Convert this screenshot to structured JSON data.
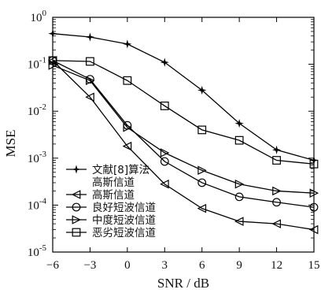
{
  "chart_data": {
    "type": "line",
    "xlabel": "SNR / dB",
    "ylabel": "MSE",
    "x": [
      -6,
      -3,
      0,
      3,
      6,
      9,
      12,
      15
    ],
    "x_ticks": [
      "−6",
      "−3",
      "0",
      "3",
      "6",
      "9",
      "12",
      "15"
    ],
    "xlim": [
      -6,
      15
    ],
    "y_scale": "log",
    "ylim": [
      1e-05,
      1
    ],
    "y_tick_exponents": [
      "0",
      "-1",
      "-2",
      "-3",
      "-4",
      "-5"
    ],
    "grid": false,
    "legend_position": "bottom-left",
    "series": [
      {
        "name": "文献[8]算法\n高斯信道",
        "marker": "star",
        "values": [
          0.45,
          0.38,
          0.27,
          0.11,
          0.028,
          0.0055,
          0.0015,
          0.0009
        ]
      },
      {
        "name": "高斯信道",
        "marker": "triangle-left",
        "values": [
          0.12,
          0.02,
          0.0018,
          0.00028,
          8.5e-05,
          4.5e-05,
          4e-05,
          3e-05
        ]
      },
      {
        "name": "良好短波信道",
        "marker": "circle",
        "values": [
          0.12,
          0.048,
          0.005,
          0.00085,
          0.0003,
          0.00015,
          0.000115,
          9e-05
        ]
      },
      {
        "name": "中度短波信道",
        "marker": "triangle-right",
        "values": [
          0.095,
          0.045,
          0.0045,
          0.0013,
          0.00055,
          0.00028,
          0.0002,
          0.00018
        ]
      },
      {
        "name": "恶劣短波信道",
        "marker": "square",
        "values": [
          0.12,
          0.115,
          0.045,
          0.013,
          0.004,
          0.0024,
          0.0009,
          0.00075
        ]
      }
    ]
  }
}
